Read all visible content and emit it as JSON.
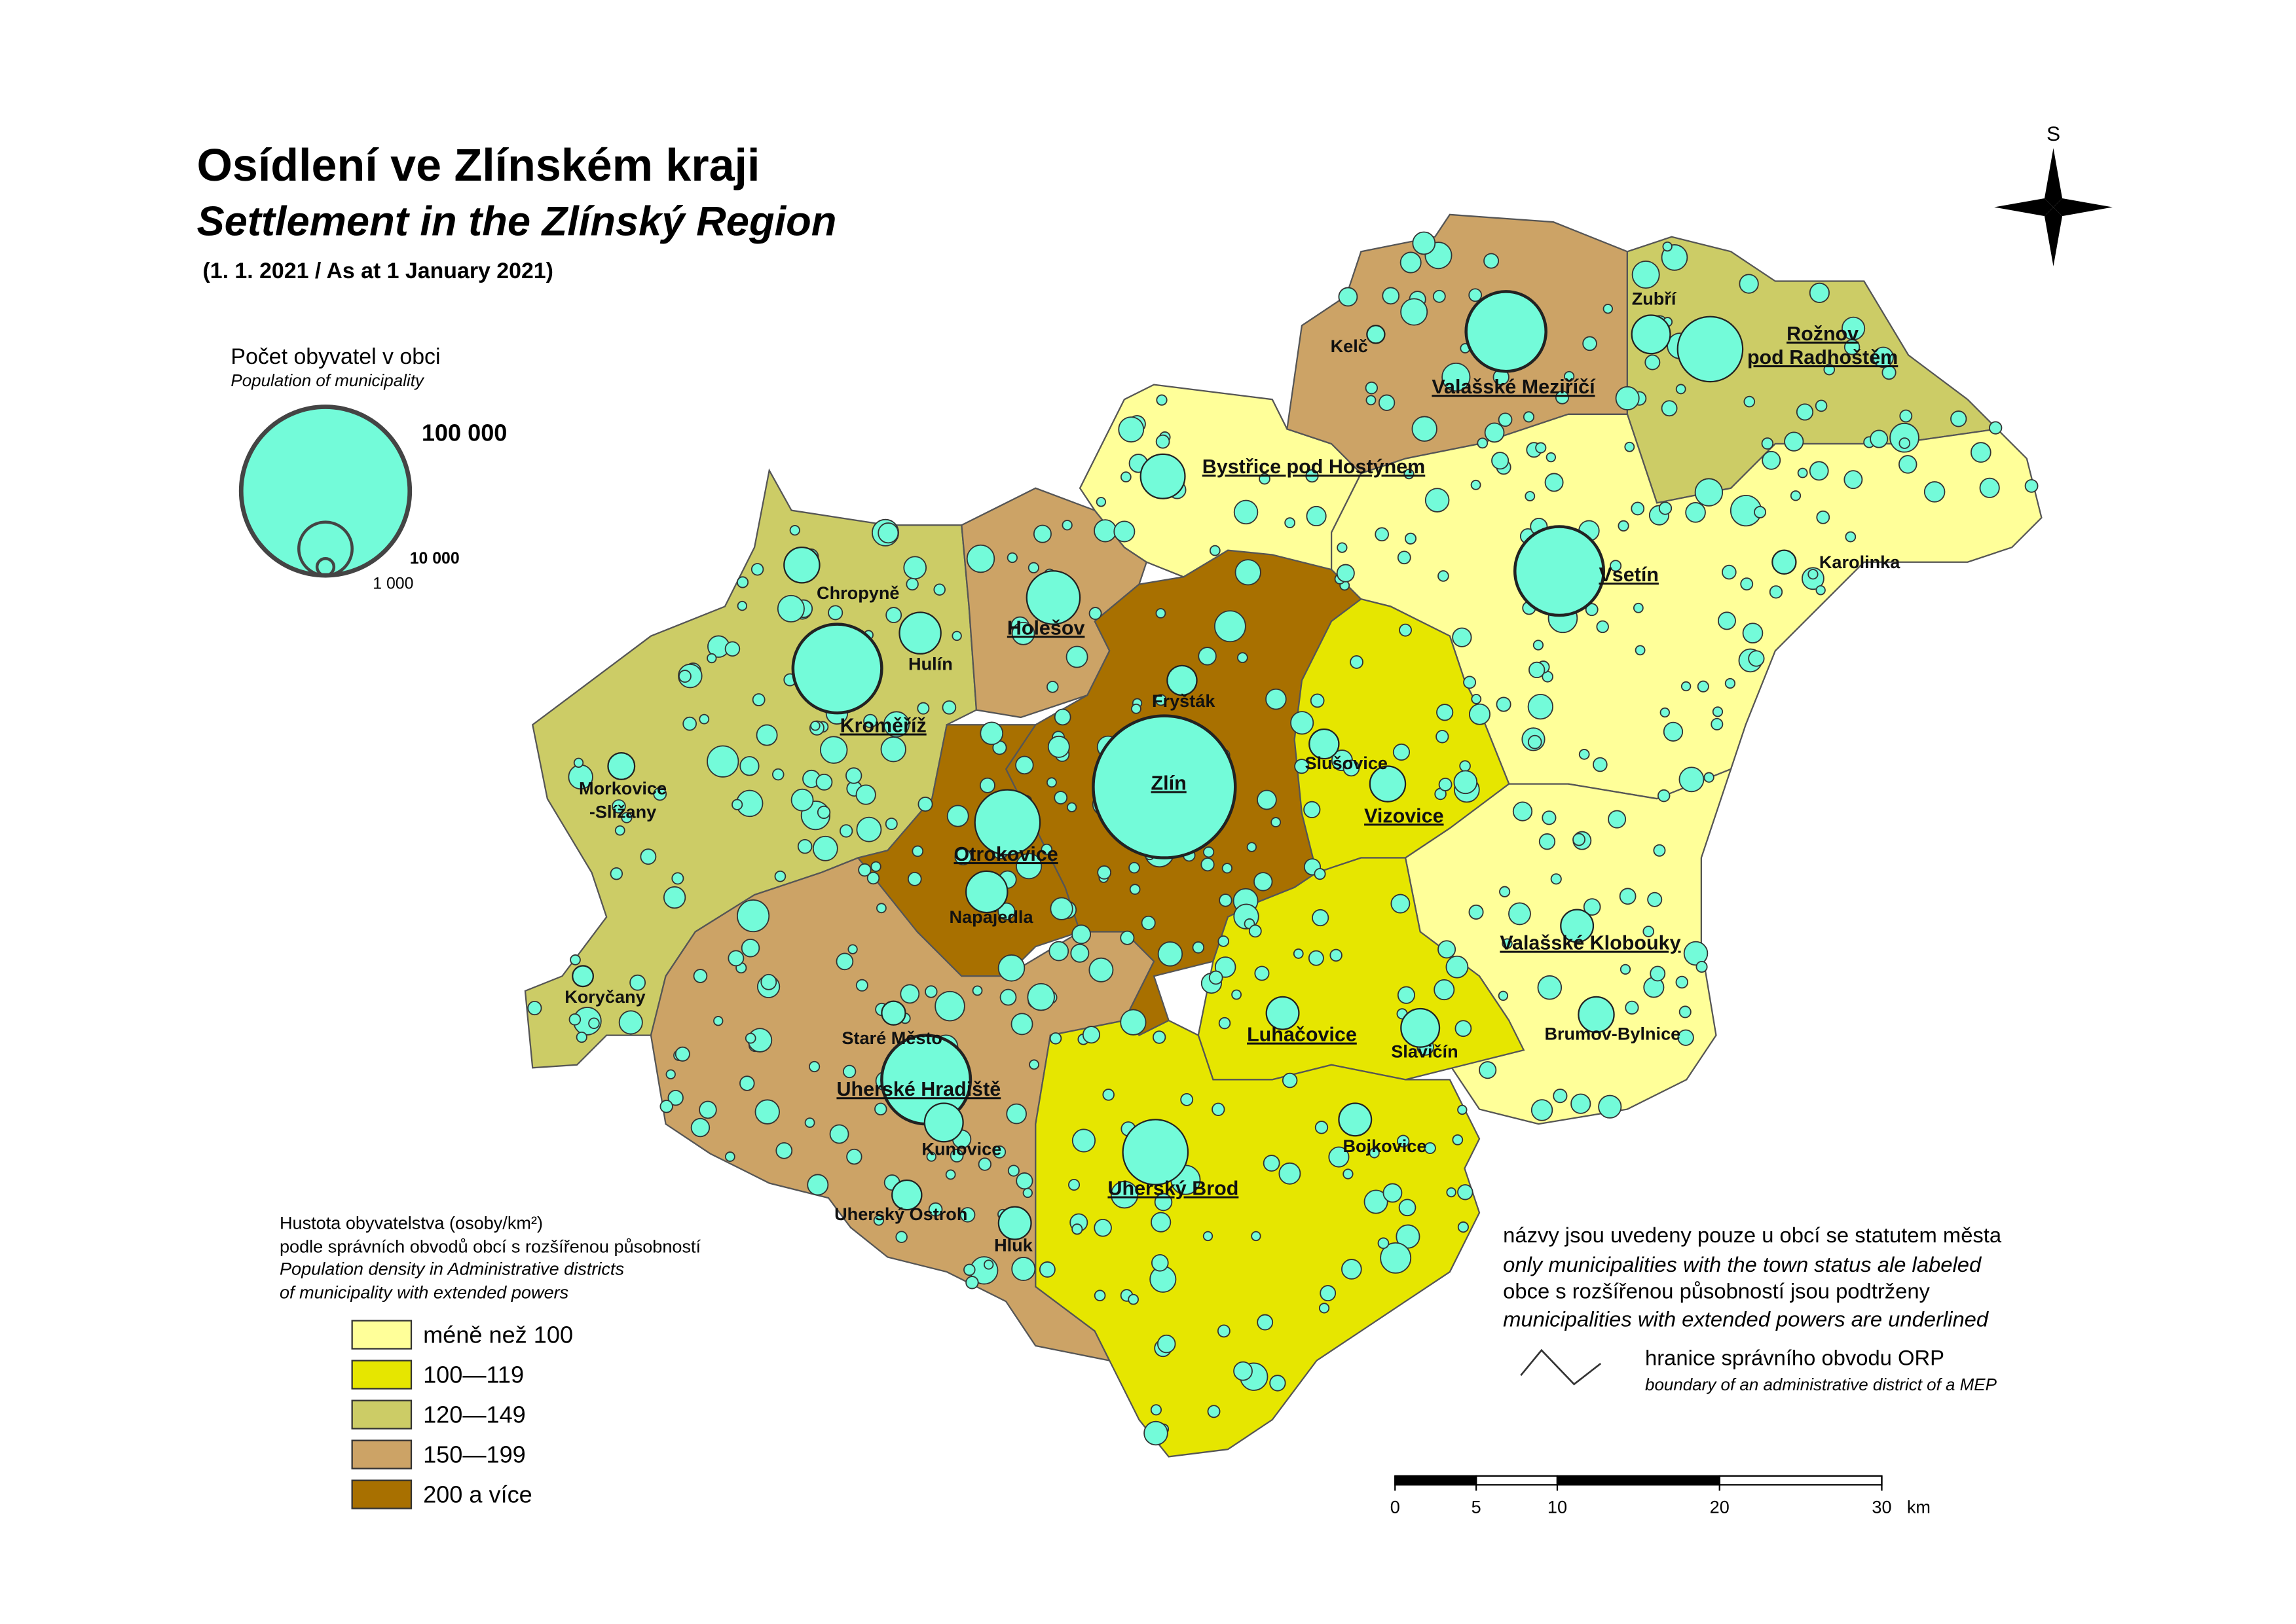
{
  "title": "Osídlení ve Zlínském kraji",
  "subtitle": "Settlement in the Zlínský Region",
  "date": "(1. 1. 2021 / As at 1 January 2021)",
  "compass": "S",
  "size_legend": {
    "heading": "Počet obyvatel v obci",
    "heading_en": "Population of municipality",
    "values": [
      {
        "value": 100000,
        "label": "100 000"
      },
      {
        "value": 10000,
        "label": "10 000"
      },
      {
        "value": 1000,
        "label": "1 000"
      }
    ]
  },
  "density_legend": {
    "lines": [
      "Hustota obyvatelstva (osoby/km²)",
      "podle správních obvodů obcí s rozšířenou působností"
    ],
    "lines_en": [
      "Population density in Administrative districts",
      "of municipality with extended powers"
    ],
    "classes": [
      {
        "label": "méně než 100",
        "color": "#ffff99"
      },
      {
        "label": "100—119",
        "color": "#e6e600"
      },
      {
        "label": "120—149",
        "color": "#cccc66"
      },
      {
        "label": "150—199",
        "color": "#cca366"
      },
      {
        "label": "200 a více",
        "color": "#a87000"
      }
    ]
  },
  "notes": {
    "lines": [
      "názvy jsou uvedeny pouze u obcí se statutem města",
      "only municipalities with the town status ale labeled",
      "obce s rozšířenou působností jsou podtrženy",
      "municipalities with extended powers are underlined"
    ],
    "boundary": "hranice správního obvodu ORP",
    "boundary_en": "boundary of an administrative district of a MEP"
  },
  "scale": {
    "ticks": [
      0,
      5,
      10,
      20,
      30
    ],
    "unit": "km"
  },
  "map": {
    "district_classes": [
      2,
      3,
      4,
      4,
      3,
      0,
      3,
      2,
      0,
      1,
      0,
      1,
      1
    ],
    "circle_color": "#73fbd9",
    "towns": [
      {
        "lines": [
          "Kelč"
        ],
        "underlined": false
      },
      {
        "lines": [
          "Valašské Meziříčí"
        ],
        "underlined": true
      },
      {
        "lines": [
          "Zubří"
        ],
        "underlined": false
      },
      {
        "lines": [
          "Rožnov",
          "pod Radhoštěm"
        ],
        "underlined": true
      },
      {
        "lines": [
          "Bystřice pod Hostýnem"
        ],
        "underlined": true
      },
      {
        "lines": [
          "Chropyně"
        ],
        "underlined": false
      },
      {
        "lines": [
          "Holešov"
        ],
        "underlined": true
      },
      {
        "lines": [
          "Hulín"
        ],
        "underlined": false
      },
      {
        "lines": [
          "Kroměříž"
        ],
        "underlined": true
      },
      {
        "lines": [
          "Fryšták"
        ],
        "underlined": false
      },
      {
        "lines": [
          "Vsetín"
        ],
        "underlined": true
      },
      {
        "lines": [
          "Karolinka"
        ],
        "underlined": false
      },
      {
        "lines": [
          "Morkovice",
          "-Slížany"
        ],
        "underlined": false
      },
      {
        "lines": [
          "Zlín"
        ],
        "underlined": true
      },
      {
        "lines": [
          "Slušovice"
        ],
        "underlined": false
      },
      {
        "lines": [
          "Vizovice"
        ],
        "underlined": true
      },
      {
        "lines": [
          "Otrokovice"
        ],
        "underlined": true
      },
      {
        "lines": [
          "Napajedla"
        ],
        "underlined": false
      },
      {
        "lines": [
          "Valašské Klobouky"
        ],
        "underlined": true
      },
      {
        "lines": [
          "Koryčany"
        ],
        "underlined": false
      },
      {
        "lines": [
          "Staré Město"
        ],
        "underlined": false
      },
      {
        "lines": [
          "Luhačovice"
        ],
        "underlined": true
      },
      {
        "lines": [
          "Slavičín"
        ],
        "underlined": false
      },
      {
        "lines": [
          "Brumov-Bylnice"
        ],
        "underlined": false
      },
      {
        "lines": [
          "Uherské Hradiště"
        ],
        "underlined": true
      },
      {
        "lines": [
          "Bojkovice"
        ],
        "underlined": false
      },
      {
        "lines": [
          "Kunovice"
        ],
        "underlined": false
      },
      {
        "lines": [
          "Uherský Brod"
        ],
        "underlined": true
      },
      {
        "lines": [
          "Uherský Ostroh"
        ],
        "underlined": false
      },
      {
        "lines": [
          "Hluk"
        ],
        "underlined": false
      }
    ]
  }
}
